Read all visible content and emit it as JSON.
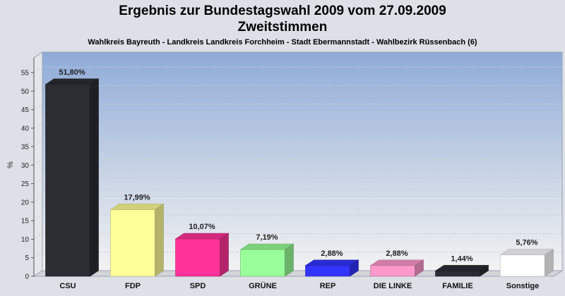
{
  "header": {
    "title_line1": "Ergebnis zur Bundestagswahl 2009 vom 27.09.2009",
    "title_line2": "Zweitstimmen",
    "subtitle": "Wahlkreis Bayreuth - Landkreis Landkreis Forchheim - Stadt Ebermannstadt - Wahlbezirk Rüssenbach (6)"
  },
  "chart_data": {
    "type": "bar",
    "categories": [
      "CSU",
      "FDP",
      "SPD",
      "GRÜNE",
      "REP",
      "DIE LINKE",
      "FAMILIE",
      "Sonstige"
    ],
    "values": [
      51.8,
      17.99,
      10.07,
      7.19,
      2.88,
      2.88,
      1.44,
      5.76
    ],
    "value_labels": [
      "51,80%",
      "17,99%",
      "10,07%",
      "7,19%",
      "2,88%",
      "2,88%",
      "1,44%",
      "5,76%"
    ],
    "colors": [
      "#2c2d33",
      "#ffff99",
      "#ff3399",
      "#99ff99",
      "#3333ff",
      "#ff99cc",
      "#2c2d33",
      "#ffffff"
    ],
    "ylabel": "%",
    "ylim": [
      0,
      58
    ],
    "yticks": [
      0,
      5,
      10,
      15,
      20,
      25,
      30,
      35,
      40,
      45,
      50,
      55
    ],
    "grid": true,
    "legend": "none"
  }
}
